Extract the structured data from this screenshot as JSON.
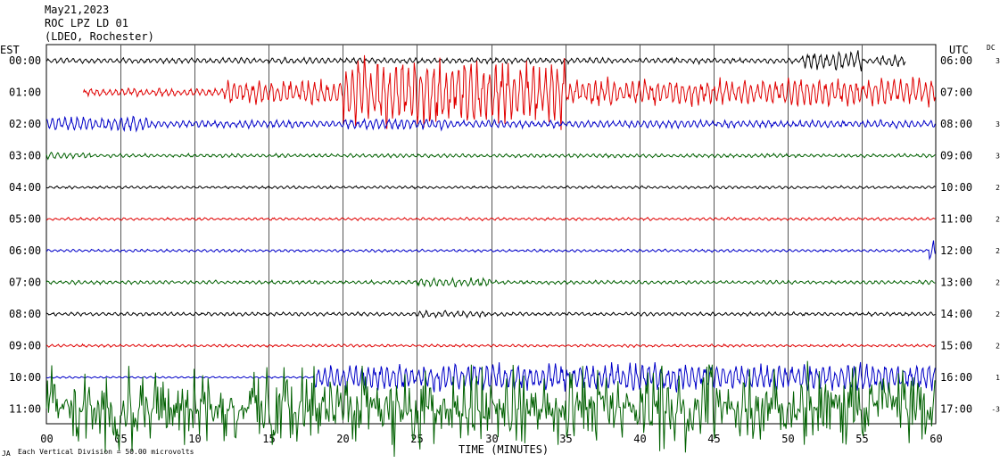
{
  "header": {
    "date": "May21,2023",
    "station": "ROC LPZ LD 01",
    "network": "(LDEO, Rochester)"
  },
  "axis": {
    "left_label": "EST",
    "right_label": "UTC",
    "dc_label": "DC",
    "xlabel": "TIME (MINUTES)",
    "footnote": "Each Vertical Division = 50.00 microvolts",
    "corner_mark": "JA"
  },
  "chart_data": {
    "type": "line",
    "title": "",
    "xlabel": "TIME (MINUTES)",
    "xlim": [
      0,
      60
    ],
    "x_ticks": [
      "00",
      "05",
      "10",
      "15",
      "20",
      "25",
      "30",
      "35",
      "40",
      "45",
      "50",
      "55",
      "60"
    ],
    "grid": true,
    "series": [
      {
        "left_time": "00:00",
        "right_time": "06:00",
        "dc": "3",
        "color": "#000000",
        "amplitude": 3,
        "start_min": 0,
        "end_min": 58,
        "activity": [
          [
            51,
            55,
            3.5
          ],
          [
            56,
            58,
            2
          ]
        ]
      },
      {
        "left_time": "01:00",
        "right_time": "07:00",
        "dc": "",
        "color": "#e00000",
        "amplitude": 4,
        "start_min": 2.5,
        "end_min": 60,
        "activity": [
          [
            12,
            20,
            3
          ],
          [
            20,
            35,
            9
          ],
          [
            35,
            60,
            3.5
          ]
        ]
      },
      {
        "left_time": "02:00",
        "right_time": "08:00",
        "dc": "3",
        "color": "#0000c8",
        "amplitude": 4,
        "start_min": 0,
        "end_min": 60,
        "activity": [
          [
            0,
            7,
            2
          ],
          [
            20,
            27,
            1.5
          ]
        ]
      },
      {
        "left_time": "03:00",
        "right_time": "09:00",
        "dc": "3",
        "color": "#006000",
        "amplitude": 2,
        "start_min": 0,
        "end_min": 60,
        "activity": [
          [
            0,
            3,
            2
          ]
        ]
      },
      {
        "left_time": "04:00",
        "right_time": "10:00",
        "dc": "2",
        "color": "#000000",
        "amplitude": 1.5,
        "start_min": 0,
        "end_min": 60,
        "activity": []
      },
      {
        "left_time": "05:00",
        "right_time": "11:00",
        "dc": "2",
        "color": "#e00000",
        "amplitude": 1.5,
        "start_min": 0,
        "end_min": 60,
        "activity": []
      },
      {
        "left_time": "06:00",
        "right_time": "12:00",
        "dc": "2",
        "color": "#0000c8",
        "amplitude": 1.5,
        "start_min": 0,
        "end_min": 60,
        "activity": [
          [
            59.5,
            60,
            8
          ]
        ]
      },
      {
        "left_time": "07:00",
        "right_time": "13:00",
        "dc": "2",
        "color": "#006000",
        "amplitude": 2,
        "start_min": 0,
        "end_min": 60,
        "activity": [
          [
            25,
            30,
            2.5
          ]
        ]
      },
      {
        "left_time": "08:00",
        "right_time": "14:00",
        "dc": "2",
        "color": "#000000",
        "amplitude": 2,
        "start_min": 0,
        "end_min": 60,
        "activity": [
          [
            25,
            30,
            2
          ]
        ]
      },
      {
        "left_time": "09:00",
        "right_time": "15:00",
        "dc": "2",
        "color": "#e00000",
        "amplitude": 1.5,
        "start_min": 0,
        "end_min": 60,
        "activity": []
      },
      {
        "left_time": "10:00",
        "right_time": "16:00",
        "dc": "1",
        "color": "#0000c8",
        "amplitude": 1,
        "start_min": 0,
        "end_min": 60,
        "activity": [
          [
            18,
            60,
            14
          ]
        ]
      },
      {
        "left_time": "11:00",
        "right_time": "17:00",
        "dc": "-3",
        "color": "#006000",
        "amplitude": 40,
        "start_min": 0,
        "end_min": 60,
        "activity": [
          [
            0,
            60,
            1
          ]
        ]
      }
    ]
  }
}
